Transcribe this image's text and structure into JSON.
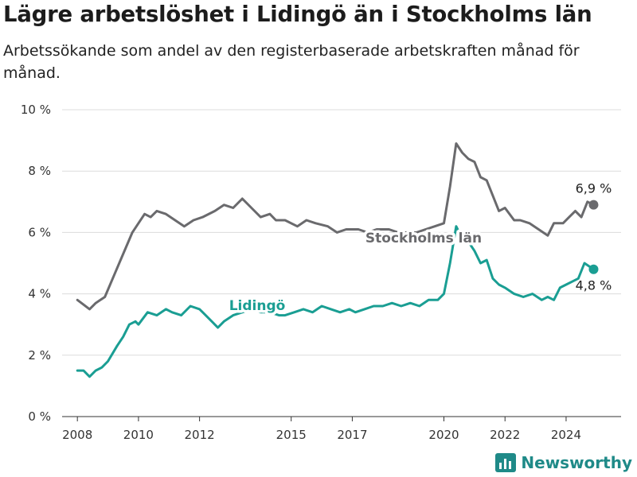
{
  "title": "Lägre arbetslöshet i Lidingö än i Stockholms län",
  "subtitle": "Arbetssökande som andel av den registerbaserade arbetskraften månad för månad.",
  "brand": {
    "name": "Newsworthy",
    "icon": "bar-chart-logo-icon",
    "color": "#1f8a88"
  },
  "chart_data": {
    "type": "line",
    "title": "Lägre arbetslöshet i Lidingö än i Stockholms län",
    "subtitle": "Arbetssökande som andel av den registerbaserade arbetskraften månad för månad.",
    "ylim": [
      0,
      10
    ],
    "xlim": [
      2007.5,
      2025.8
    ],
    "grid": "horizontal",
    "y_ticks": [
      {
        "value": 0,
        "label": "0 %"
      },
      {
        "value": 2,
        "label": "2 %"
      },
      {
        "value": 4,
        "label": "4 %"
      },
      {
        "value": 6,
        "label": "6 %"
      },
      {
        "value": 8,
        "label": "8 %"
      },
      {
        "value": 10,
        "label": "10 %"
      }
    ],
    "x_ticks": [
      {
        "value": 2008,
        "label": "2008"
      },
      {
        "value": 2010,
        "label": "2010"
      },
      {
        "value": 2012,
        "label": "2012"
      },
      {
        "value": 2015,
        "label": "2015"
      },
      {
        "value": 2017,
        "label": "2017"
      },
      {
        "value": 2020,
        "label": "2020"
      },
      {
        "value": 2022,
        "label": "2022"
      },
      {
        "value": 2024,
        "label": "2024"
      }
    ],
    "series": [
      {
        "name": "Stockholms län",
        "color": "#6a6a6d",
        "end_label": "6,9 %",
        "x": [
          2008.0,
          2008.4,
          2008.6,
          2008.9,
          2009.2,
          2009.5,
          2009.8,
          2010.0,
          2010.2,
          2010.4,
          2010.6,
          2010.9,
          2011.2,
          2011.5,
          2011.8,
          2012.1,
          2012.5,
          2012.8,
          2013.1,
          2013.4,
          2013.7,
          2014.0,
          2014.3,
          2014.5,
          2014.8,
          2015.2,
          2015.5,
          2015.8,
          2016.2,
          2016.5,
          2016.8,
          2017.2,
          2017.5,
          2017.8,
          2018.2,
          2018.5,
          2018.8,
          2019.1,
          2019.4,
          2019.7,
          2020.0,
          2020.2,
          2020.4,
          2020.6,
          2020.8,
          2021.0,
          2021.2,
          2021.4,
          2021.6,
          2021.8,
          2022.0,
          2022.3,
          2022.5,
          2022.8,
          2023.1,
          2023.4,
          2023.6,
          2023.9,
          2024.1,
          2024.3,
          2024.5,
          2024.7,
          2024.9
        ],
        "values": [
          3.8,
          3.5,
          3.7,
          3.9,
          4.6,
          5.3,
          6.0,
          6.3,
          6.6,
          6.5,
          6.7,
          6.6,
          6.4,
          6.2,
          6.4,
          6.5,
          6.7,
          6.9,
          6.8,
          7.1,
          6.8,
          6.5,
          6.6,
          6.4,
          6.4,
          6.2,
          6.4,
          6.3,
          6.2,
          6.0,
          6.1,
          6.1,
          6.0,
          6.1,
          6.1,
          6.0,
          6.0,
          6.0,
          6.1,
          6.2,
          6.3,
          7.5,
          8.9,
          8.6,
          8.4,
          8.3,
          7.8,
          7.7,
          7.2,
          6.7,
          6.8,
          6.4,
          6.4,
          6.3,
          6.1,
          5.9,
          6.3,
          6.3,
          6.5,
          6.7,
          6.5,
          7.0,
          6.9
        ]
      },
      {
        "name": "Lidingö",
        "color": "#1a9e93",
        "end_label": "4,8 %",
        "x": [
          2008.0,
          2008.2,
          2008.4,
          2008.6,
          2008.8,
          2009.0,
          2009.3,
          2009.5,
          2009.7,
          2009.9,
          2010.0,
          2010.3,
          2010.6,
          2010.9,
          2011.1,
          2011.4,
          2011.7,
          2012.0,
          2012.2,
          2012.4,
          2012.6,
          2012.8,
          2013.1,
          2013.4,
          2013.7,
          2014.0,
          2014.3,
          2014.6,
          2014.8,
          2015.1,
          2015.4,
          2015.7,
          2016.0,
          2016.3,
          2016.6,
          2016.9,
          2017.1,
          2017.4,
          2017.7,
          2018.0,
          2018.3,
          2018.6,
          2018.9,
          2019.2,
          2019.5,
          2019.8,
          2020.0,
          2020.2,
          2020.4,
          2020.6,
          2020.8,
          2021.0,
          2021.2,
          2021.4,
          2021.6,
          2021.8,
          2022.0,
          2022.3,
          2022.6,
          2022.9,
          2023.2,
          2023.4,
          2023.6,
          2023.8,
          2024.0,
          2024.2,
          2024.4,
          2024.6,
          2024.9
        ],
        "values": [
          1.5,
          1.5,
          1.3,
          1.5,
          1.6,
          1.8,
          2.3,
          2.6,
          3.0,
          3.1,
          3.0,
          3.4,
          3.3,
          3.5,
          3.4,
          3.3,
          3.6,
          3.5,
          3.3,
          3.1,
          2.9,
          3.1,
          3.3,
          3.4,
          3.5,
          3.4,
          3.4,
          3.3,
          3.3,
          3.4,
          3.5,
          3.4,
          3.6,
          3.5,
          3.4,
          3.5,
          3.4,
          3.5,
          3.6,
          3.6,
          3.7,
          3.6,
          3.7,
          3.6,
          3.8,
          3.8,
          4.0,
          5.0,
          6.2,
          5.8,
          5.7,
          5.4,
          5.0,
          5.1,
          4.5,
          4.3,
          4.2,
          4.0,
          3.9,
          4.0,
          3.8,
          3.9,
          3.8,
          4.2,
          4.3,
          4.4,
          4.5,
          5.0,
          4.8
        ]
      }
    ]
  }
}
